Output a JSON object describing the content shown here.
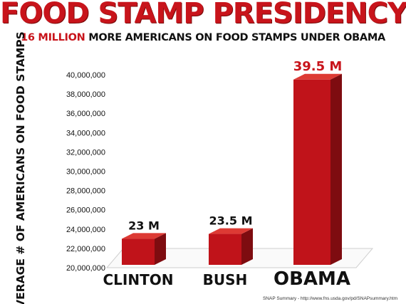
{
  "header": {
    "title": "FOOD STAMP PRESIDENCY",
    "subtitle_highlight": "16 MILLION",
    "subtitle_rest": " MORE AMERICANS ON FOOD STAMPS UNDER OBAMA"
  },
  "colors": {
    "title": "#c8141b",
    "bar_front": "#c0131a",
    "bar_side": "#7e0c10",
    "bar_top": "#dd3a34",
    "text": "#111111"
  },
  "chart_data": {
    "type": "bar",
    "title": "FOOD STAMP PRESIDENCY",
    "subtitle": "16 MILLION MORE AMERICANS ON FOOD STAMPS UNDER OBAMA",
    "ylabel": "AVERAGE # OF AMERICANS ON FOOD STAMPS",
    "xlabel": "",
    "categories": [
      "CLINTON",
      "BUSH",
      "OBAMA"
    ],
    "values": [
      23000000,
      23500000,
      39500000
    ],
    "data_labels": [
      "23 M",
      "23.5 M",
      "39.5 M"
    ],
    "ylim": [
      20000000,
      40000000
    ],
    "yticks": [
      20000000,
      22000000,
      24000000,
      26000000,
      28000000,
      30000000,
      32000000,
      34000000,
      36000000,
      38000000,
      40000000
    ],
    "ytick_labels": [
      "20,000,000",
      "22,000,000",
      "24,000,000",
      "26,000,000",
      "28,000,000",
      "30,000,000",
      "32,000,000",
      "34,000,000",
      "36,000,000",
      "38,000,000",
      "40,000,000"
    ],
    "grid": false,
    "style": "3d"
  },
  "footer": {
    "source": "SNAP Summary - http://www.fns.usda.gov/pd/SNAPsummary.htm"
  }
}
